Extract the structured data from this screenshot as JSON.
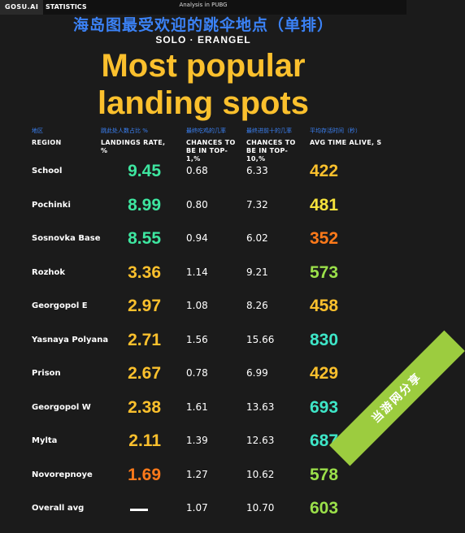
{
  "header": {
    "brand": "GOSU.AI",
    "nav": "STATISTICS",
    "analysis": "Analysis in PUBG"
  },
  "chart_data": {
    "type": "table",
    "title_cn": "海岛图最受欢迎的跳伞地点（单排）",
    "subtitle": "SOLO · ERANGEL",
    "title": "Most popular landing spots",
    "columns": [
      {
        "cn": "地区",
        "en": "REGION"
      },
      {
        "cn": "跳此处人数占比 %",
        "en": "LANDINGS RATE, %"
      },
      {
        "cn": "最终吃鸡的几率",
        "en": "CHANCES TO BE IN TOP-1,%"
      },
      {
        "cn": "最终进前十的几率",
        "en": "CHANCES TO BE IN TOP-10,%"
      },
      {
        "cn": "平均存活时间（秒）",
        "en": "AVG TIME ALIVE, S"
      }
    ],
    "rows": [
      {
        "region": "School",
        "rate": "9.45",
        "top1": "0.68",
        "top10": "6.33",
        "alive": "422"
      },
      {
        "region": "Pochinki",
        "rate": "8.99",
        "top1": "0.80",
        "top10": "7.32",
        "alive": "481"
      },
      {
        "region": "Sosnovka Base",
        "rate": "8.55",
        "top1": "0.94",
        "top10": "6.02",
        "alive": "352"
      },
      {
        "region": "Rozhok",
        "rate": "3.36",
        "top1": "1.14",
        "top10": "9.21",
        "alive": "573"
      },
      {
        "region": "Georgopol E",
        "rate": "2.97",
        "top1": "1.08",
        "top10": "8.26",
        "alive": "458"
      },
      {
        "region": "Yasnaya Polyana",
        "rate": "2.71",
        "top1": "1.56",
        "top10": "15.66",
        "alive": "830"
      },
      {
        "region": "Prison",
        "rate": "2.67",
        "top1": "0.78",
        "top10": "6.99",
        "alive": "429"
      },
      {
        "region": "Georgopol W",
        "rate": "2.38",
        "top1": "1.61",
        "top10": "13.63",
        "alive": "693"
      },
      {
        "region": "Mylta",
        "rate": "2.11",
        "top1": "1.39",
        "top10": "12.63",
        "alive": "687"
      },
      {
        "region": "Novorepnoye",
        "rate": "1.69",
        "top1": "1.27",
        "top10": "10.62",
        "alive": "578"
      },
      {
        "region": "Overall avg",
        "rate": "",
        "top1": "1.07",
        "top10": "10.70",
        "alive": "603"
      }
    ]
  },
  "colors": {
    "rate": [
      "#3ee6a0",
      "#3ee6a0",
      "#3ee6a0",
      "#fbc02d",
      "#fbc02d",
      "#fbc02d",
      "#fbc02d",
      "#fbc02d",
      "#fbc02d",
      "#ff7a1a",
      "#ffffff"
    ],
    "alive": [
      "#fbc02d",
      "#f5e23c",
      "#ff7a1a",
      "#9be04a",
      "#fbc02d",
      "#3ee6c8",
      "#fbc02d",
      "#3ee6c8",
      "#3ee6c8",
      "#9be04a",
      "#9be04a"
    ]
  },
  "watermark": "当游网分享"
}
